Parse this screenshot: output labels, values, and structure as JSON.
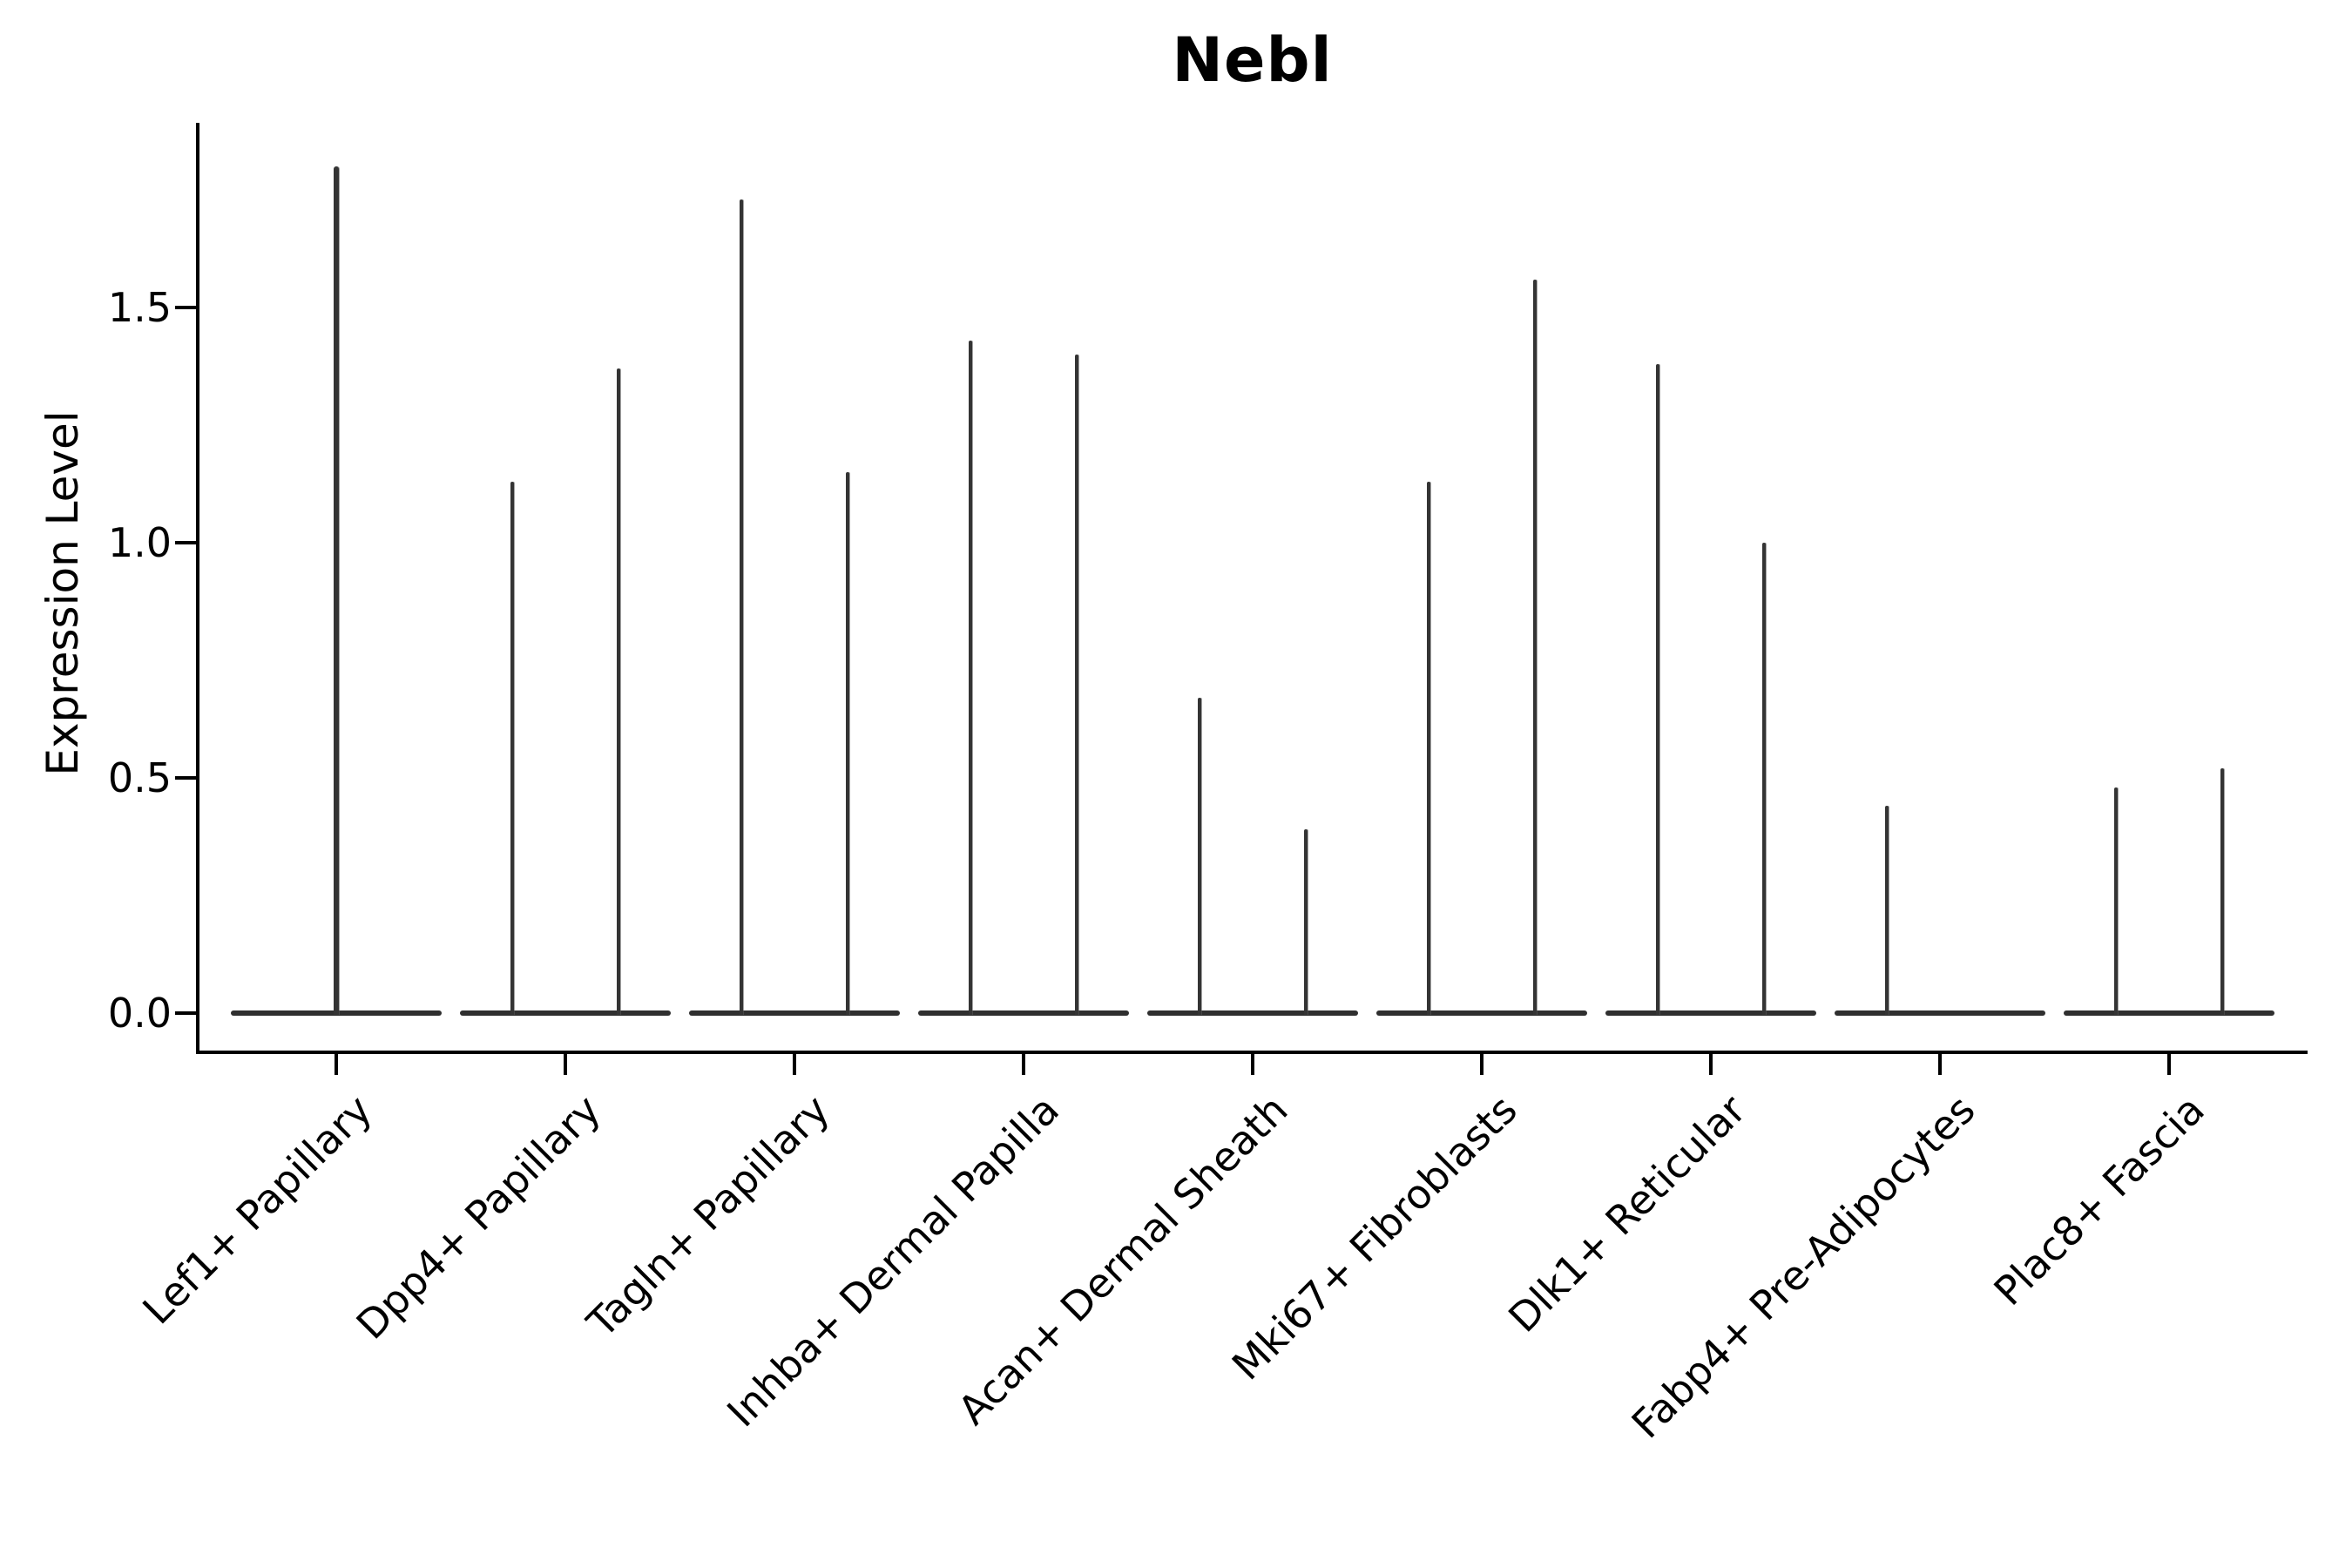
{
  "chart_data": {
    "type": "violin",
    "title": "Nebl",
    "xlabel": "",
    "ylabel": "Expression Level",
    "grid": false,
    "legend": "none",
    "ylim": [
      0,
      1.89
    ],
    "yticks": [
      {
        "value": 0.0,
        "label": "0.0"
      },
      {
        "value": 0.5,
        "label": "0.5"
      },
      {
        "value": 1.0,
        "label": "1.0"
      },
      {
        "value": 1.5,
        "label": "1.5"
      }
    ],
    "violin_style": "flat body at 0 expression with thin spike to max expression",
    "categories": [
      {
        "label": "Lef1+ Papillary",
        "violins": [
          {
            "position": "center",
            "max": 1.8
          }
        ]
      },
      {
        "label": "Dpp4+ Papillary",
        "violins": [
          {
            "position": "left",
            "max": 1.13
          },
          {
            "position": "right",
            "max": 1.37
          }
        ]
      },
      {
        "label": "Tagln+ Papillary",
        "violins": [
          {
            "position": "left",
            "max": 1.73
          },
          {
            "position": "right",
            "max": 1.15
          }
        ]
      },
      {
        "label": "Inhba+ Dermal Papilla",
        "violins": [
          {
            "position": "left",
            "max": 1.43
          },
          {
            "position": "right",
            "max": 1.4
          }
        ]
      },
      {
        "label": "Acan+ Dermal Sheath",
        "violins": [
          {
            "position": "left",
            "max": 0.67
          },
          {
            "position": "right",
            "max": 0.39
          }
        ]
      },
      {
        "label": "Mki67+ Fibroblasts",
        "violins": [
          {
            "position": "left",
            "max": 1.13
          },
          {
            "position": "right",
            "max": 1.56
          }
        ]
      },
      {
        "label": "Dlk1+ Reticular",
        "violins": [
          {
            "position": "left",
            "max": 1.38
          },
          {
            "position": "right",
            "max": 1.0
          }
        ]
      },
      {
        "label": "Fabp4+ Pre-Adipocytes",
        "violins": [
          {
            "position": "left",
            "max": 0.44
          },
          {
            "position": "right",
            "max": 0.0
          }
        ]
      },
      {
        "label": "Plac8+ Fascia",
        "violins": [
          {
            "position": "left",
            "max": 0.48
          },
          {
            "position": "right",
            "max": 0.52
          }
        ]
      }
    ],
    "colors": {
      "violin": "#343434",
      "axis": "#000000",
      "text": "#000000",
      "background": "#ffffff"
    }
  }
}
